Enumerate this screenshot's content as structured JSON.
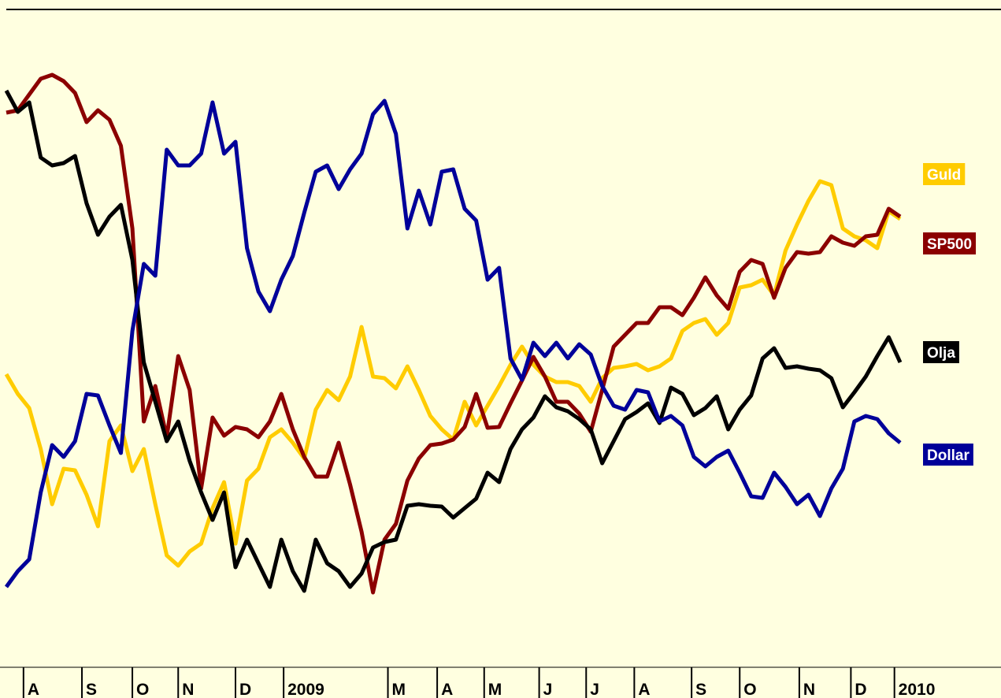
{
  "chart_data": {
    "type": "line",
    "xlim": [
      0,
      86.8
    ],
    "ylim": [
      0,
      800
    ],
    "xticks": [
      {
        "value": 1.5,
        "label": "A"
      },
      {
        "value": 6.6,
        "label": "S"
      },
      {
        "value": 11,
        "label": "O"
      },
      {
        "value": 15,
        "label": "N"
      },
      {
        "value": 20,
        "label": "D"
      },
      {
        "value": 24.2,
        "label": "2009"
      },
      {
        "value": 33.3,
        "label": "M"
      },
      {
        "value": 37.6,
        "label": "A"
      },
      {
        "value": 41.7,
        "label": "M"
      },
      {
        "value": 46.5,
        "label": "J"
      },
      {
        "value": 50.6,
        "label": "J"
      },
      {
        "value": 54.8,
        "label": "A"
      },
      {
        "value": 59.8,
        "label": "S"
      },
      {
        "value": 64,
        "label": "O"
      },
      {
        "value": 69.2,
        "label": "N"
      },
      {
        "value": 73.7,
        "label": "D"
      },
      {
        "value": 77.5,
        "label": "2010"
      }
    ],
    "series": [
      {
        "name": "Guld",
        "color": "#ffcc00",
        "values": [
          325,
          300,
          282,
          230,
          160,
          205,
          203,
          172,
          132,
          240,
          260,
          202,
          230,
          160,
          95,
          82,
          100,
          110,
          155,
          188,
          110,
          190,
          205,
          245,
          255,
          238,
          218,
          280,
          305,
          292,
          322,
          385,
          322,
          320,
          307,
          335,
          305,
          272,
          255,
          242,
          290,
          260,
          285,
          310,
          337,
          360,
          337,
          322,
          315,
          315,
          310,
          290,
          320,
          333,
          335,
          338,
          330,
          335,
          345,
          380,
          390,
          395,
          375,
          390,
          435,
          438,
          445,
          425,
          482,
          515,
          545,
          570,
          565,
          510,
          500,
          495,
          485,
          532,
          522
        ]
      },
      {
        "name": "SP500",
        "color": "#8b0000",
        "values": [
          657,
          660,
          680,
          700,
          705,
          697,
          682,
          645,
          660,
          648,
          615,
          510,
          265,
          310,
          245,
          348,
          305,
          180,
          270,
          247,
          258,
          255,
          245,
          265,
          300,
          255,
          220,
          195,
          195,
          238,
          185,
          125,
          48,
          115,
          135,
          190,
          218,
          235,
          237,
          242,
          258,
          300,
          257,
          258,
          288,
          317,
          347,
          322,
          290,
          290,
          275,
          252,
          305,
          360,
          375,
          390,
          390,
          410,
          410,
          400,
          422,
          448,
          425,
          408,
          455,
          470,
          465,
          422,
          460,
          480,
          478,
          480,
          500,
          492,
          488,
          500,
          502,
          535,
          525
        ]
      },
      {
        "name": "Olja",
        "color": "#000000",
        "values": [
          685,
          658,
          670,
          600,
          590,
          593,
          602,
          542,
          502,
          525,
          540,
          470,
          340,
          290,
          240,
          265,
          215,
          175,
          140,
          175,
          80,
          115,
          85,
          55,
          115,
          75,
          50,
          115,
          85,
          75,
          55,
          72,
          105,
          112,
          115,
          158,
          160,
          158,
          157,
          143,
          155,
          167,
          200,
          188,
          230,
          255,
          270,
          297,
          283,
          278,
          268,
          255,
          212,
          240,
          268,
          277,
          288,
          263,
          308,
          300,
          273,
          282,
          297,
          255,
          280,
          298,
          345,
          358,
          333,
          335,
          332,
          330,
          320,
          283,
          302,
          322,
          348,
          372,
          340
        ]
      },
      {
        "name": "Dollar",
        "color": "#000099",
        "values": [
          55,
          75,
          90,
          175,
          235,
          220,
          240,
          300,
          298,
          260,
          225,
          380,
          465,
          450,
          610,
          590,
          590,
          605,
          670,
          605,
          620,
          485,
          430,
          405,
          445,
          475,
          530,
          582,
          590,
          560,
          585,
          605,
          655,
          672,
          630,
          510,
          558,
          515,
          582,
          585,
          535,
          520,
          445,
          460,
          345,
          318,
          365,
          348,
          365,
          345,
          363,
          350,
          310,
          285,
          280,
          305,
          302,
          265,
          272,
          260,
          220,
          208,
          220,
          228,
          200,
          170,
          168,
          200,
          182,
          160,
          172,
          145,
          180,
          205,
          265,
          272,
          268,
          250,
          238
        ]
      }
    ]
  }
}
